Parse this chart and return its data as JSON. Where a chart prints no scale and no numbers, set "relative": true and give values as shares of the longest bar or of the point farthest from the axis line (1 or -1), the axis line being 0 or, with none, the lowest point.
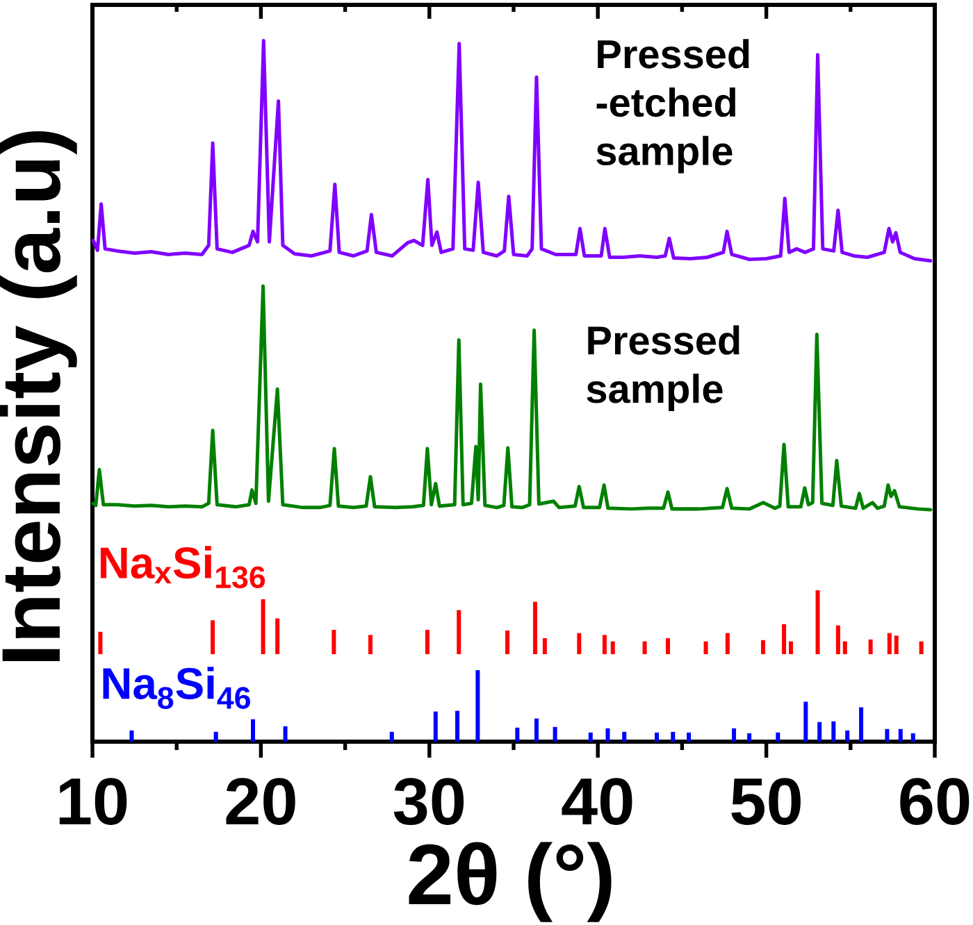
{
  "chart_data": [
    {
      "type": "line",
      "xlabel": "2θ (°)",
      "ylabel": "Intensity (a.u)",
      "relative": true,
      "xlim": [
        10,
        60
      ],
      "xticks": [
        10,
        {
          "value": 15,
          "label": null
        },
        20,
        {
          "value": 25,
          "label": null
        },
        30,
        {
          "value": 35,
          "label": null
        },
        40,
        {
          "value": 45,
          "label": null
        },
        50,
        {
          "value": 55,
          "label": null
        },
        60
      ],
      "series": [
        {
          "name": "Pressed -etched sample",
          "color": "#8000ff",
          "x": [
            10.05,
            10.3,
            10.52,
            10.75,
            11.5,
            12.5,
            13.5,
            14.5,
            15.5,
            16.5,
            16.9,
            17.14,
            17.4,
            18.3,
            19.3,
            19.53,
            19.8,
            20.16,
            20.5,
            21.04,
            21.3,
            22.0,
            23.0,
            24.1,
            24.39,
            24.65,
            25.5,
            26.3,
            26.56,
            26.85,
            27.8,
            28.72,
            29.08,
            29.6,
            29.91,
            30.15,
            30.45,
            30.7,
            31.4,
            31.77,
            32.1,
            32.6,
            32.9,
            33.2,
            34.0,
            34.45,
            34.71,
            35.0,
            35.8,
            36.1,
            36.36,
            36.65,
            37.5,
            38.7,
            38.94,
            39.2,
            40.2,
            40.42,
            40.7,
            41.5,
            42.5,
            43.5,
            44.0,
            44.24,
            44.5,
            45.5,
            46.5,
            47.45,
            47.67,
            47.95,
            49.0,
            50.0,
            50.85,
            51.1,
            51.35,
            51.8,
            52.3,
            52.8,
            53.05,
            53.35,
            54.0,
            54.26,
            54.5,
            55.2,
            56.0,
            57.0,
            57.28,
            57.5,
            57.69,
            57.95,
            58.8,
            59.75
          ],
          "values": [
            0.715,
            0.701,
            0.767,
            0.703,
            0.7,
            0.697,
            0.699,
            0.695,
            0.697,
            0.695,
            0.708,
            0.854,
            0.703,
            0.698,
            0.708,
            0.728,
            0.713,
            1.0,
            0.713,
            0.914,
            0.708,
            0.696,
            0.693,
            0.7,
            0.795,
            0.698,
            0.693,
            0.7,
            0.752,
            0.698,
            0.693,
            0.712,
            0.715,
            0.708,
            0.802,
            0.708,
            0.727,
            0.698,
            0.703,
            0.996,
            0.703,
            0.701,
            0.798,
            0.698,
            0.693,
            0.7,
            0.778,
            0.695,
            0.693,
            0.703,
            0.948,
            0.703,
            0.695,
            0.695,
            0.732,
            0.693,
            0.693,
            0.732,
            0.691,
            0.691,
            0.693,
            0.691,
            0.693,
            0.718,
            0.69,
            0.689,
            0.691,
            0.698,
            0.728,
            0.695,
            0.688,
            0.689,
            0.693,
            0.775,
            0.698,
            0.703,
            0.698,
            0.703,
            0.98,
            0.703,
            0.7,
            0.758,
            0.698,
            0.693,
            0.691,
            0.698,
            0.732,
            0.713,
            0.726,
            0.698,
            0.689,
            0.686
          ]
        },
        {
          "name": "Pressed sample",
          "color": "#008000",
          "x": [
            10.05,
            10.2,
            10.41,
            10.65,
            11.5,
            12.5,
            13.5,
            14.5,
            15.5,
            16.5,
            16.9,
            17.14,
            17.4,
            18.5,
            19.3,
            19.47,
            19.7,
            20.13,
            20.45,
            20.98,
            21.3,
            22.5,
            23.5,
            24.1,
            24.36,
            24.6,
            25.5,
            26.25,
            26.5,
            26.75,
            28.0,
            29.0,
            29.65,
            29.88,
            30.12,
            30.37,
            30.6,
            31.5,
            31.75,
            32.0,
            32.5,
            32.76,
            32.9,
            33.04,
            33.3,
            34.0,
            34.42,
            34.66,
            34.9,
            35.5,
            35.95,
            36.22,
            36.5,
            37.37,
            37.7,
            38.65,
            38.89,
            39.15,
            40.1,
            40.37,
            40.6,
            42.0,
            43.0,
            43.9,
            44.16,
            44.4,
            46.0,
            47.4,
            47.67,
            47.95,
            49.0,
            49.82,
            50.5,
            50.8,
            51.05,
            51.3,
            52.05,
            52.28,
            52.5,
            52.75,
            53.0,
            53.3,
            53.95,
            54.18,
            54.45,
            55.3,
            55.52,
            55.75,
            56.3,
            56.6,
            57.0,
            57.23,
            57.4,
            57.61,
            57.9,
            59.0,
            59.75
          ],
          "values": [
            0.34,
            0.337,
            0.388,
            0.338,
            0.338,
            0.336,
            0.337,
            0.335,
            0.336,
            0.335,
            0.34,
            0.444,
            0.338,
            0.335,
            0.338,
            0.359,
            0.34,
            0.65,
            0.343,
            0.503,
            0.338,
            0.334,
            0.334,
            0.337,
            0.418,
            0.336,
            0.334,
            0.336,
            0.378,
            0.335,
            0.334,
            0.335,
            0.337,
            0.418,
            0.338,
            0.368,
            0.336,
            0.338,
            0.573,
            0.338,
            0.34,
            0.421,
            0.345,
            0.51,
            0.337,
            0.334,
            0.337,
            0.419,
            0.335,
            0.334,
            0.338,
            0.587,
            0.339,
            0.343,
            0.334,
            0.336,
            0.364,
            0.334,
            0.334,
            0.366,
            0.333,
            0.332,
            0.333,
            0.333,
            0.356,
            0.332,
            0.332,
            0.334,
            0.361,
            0.333,
            0.332,
            0.341,
            0.333,
            0.336,
            0.424,
            0.335,
            0.335,
            0.362,
            0.338,
            0.341,
            0.581,
            0.34,
            0.337,
            0.401,
            0.336,
            0.333,
            0.354,
            0.333,
            0.341,
            0.333,
            0.336,
            0.366,
            0.35,
            0.358,
            0.335,
            0.332,
            0.331
          ]
        },
        {
          "name": "Na$_{8}$Si$_{46}$",
          "type": "bar",
          "color": "#0000ff",
          "x": [
            12.33,
            17.33,
            19.53,
            21.45,
            27.77,
            30.37,
            31.66,
            32.87,
            35.22,
            36.36,
            37.46,
            39.57,
            40.59,
            41.57,
            43.5,
            44.46,
            45.4,
            48.08,
            48.99,
            50.69,
            52.34,
            53.16,
            53.99,
            54.81,
            55.63,
            57.17,
            57.97,
            58.71
          ],
          "values": [
            0.016,
            0.014,
            0.032,
            0.022,
            0.014,
            0.043,
            0.044,
            0.102,
            0.02,
            0.033,
            0.021,
            0.013,
            0.019,
            0.014,
            0.013,
            0.014,
            0.013,
            0.019,
            0.012,
            0.013,
            0.057,
            0.028,
            0.029,
            0.016,
            0.049,
            0.018,
            0.018,
            0.012
          ]
        }
      ]
    },
    {
      "type": "bar",
      "relative": true,
      "xlim": [
        10,
        60
      ],
      "tick_labels": false,
      "series": [
        {
          "name": "Na$_{x}$Si$_{136}$",
          "color": "#ff0000",
          "x": [
            10.47,
            17.14,
            20.13,
            20.98,
            24.33,
            26.5,
            29.88,
            31.75,
            34.63,
            36.28,
            36.85,
            38.89,
            40.4,
            40.89,
            42.78,
            44.16,
            46.41,
            47.7,
            49.81,
            51.05,
            51.46,
            53.05,
            54.26,
            54.67,
            56.19,
            57.31,
            57.72,
            59.2
          ],
          "values": [
            0.35,
            0.53,
            0.86,
            0.56,
            0.38,
            0.3,
            0.38,
            0.69,
            0.37,
            0.82,
            0.25,
            0.33,
            0.3,
            0.2,
            0.2,
            0.25,
            0.2,
            0.33,
            0.22,
            0.47,
            0.2,
            1,
            0.45,
            0.2,
            0.23,
            0.33,
            0.29,
            0.2
          ]
        }
      ]
    }
  ]
}
